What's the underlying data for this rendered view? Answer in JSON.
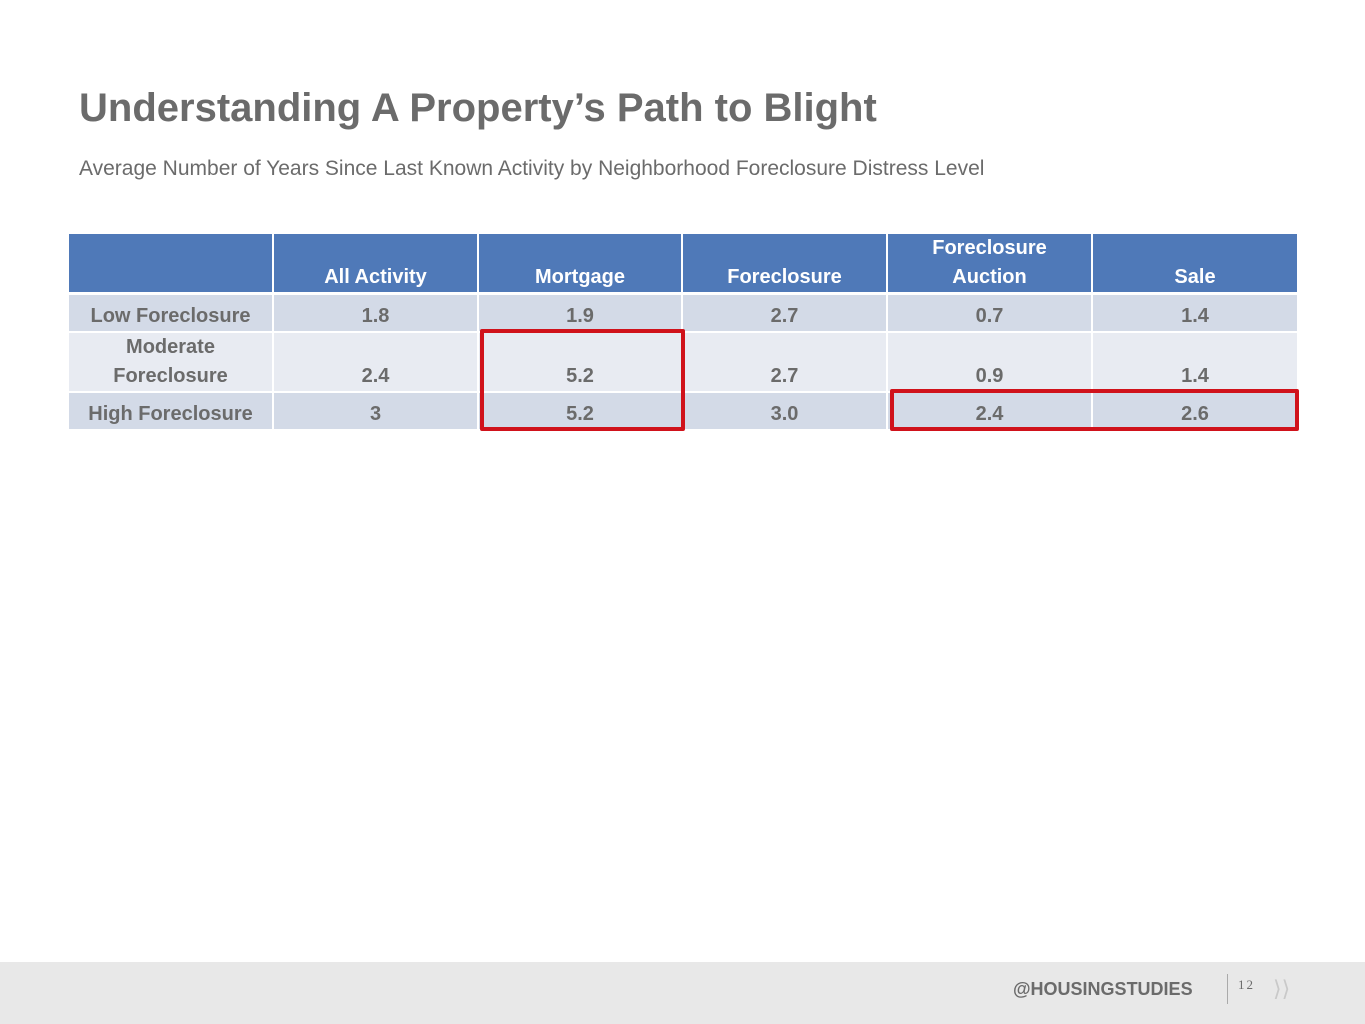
{
  "slide": {
    "title": "Understanding A Property’s Path to Blight",
    "subtitle": "Average Number of Years Since Last Known Activity by Neighborhood Foreclosure Distress Level"
  },
  "table": {
    "headers": [
      "",
      "All Activity",
      "Mortgage",
      "Foreclosure",
      "Foreclosure Auction",
      "Sale"
    ],
    "rows": [
      {
        "label": "Low Foreclosure",
        "values": [
          "1.8",
          "1.9",
          "2.7",
          "0.7",
          "1.4"
        ]
      },
      {
        "label": "Moderate Foreclosure",
        "values": [
          "2.4",
          "5.2",
          "2.7",
          "0.9",
          "1.4"
        ]
      },
      {
        "label": "High Foreclosure",
        "values": [
          "3",
          "5.2",
          "3.0",
          "2.4",
          "2.6"
        ]
      }
    ]
  },
  "highlights": [
    {
      "covers": "Mortgage column, Moderate and High Foreclosure rows",
      "color": "#d0121b"
    },
    {
      "covers": "Foreclosure Auction and Sale columns, High Foreclosure row",
      "color": "#d0121b"
    }
  ],
  "footer": {
    "handle": "@HOUSINGSTUDIES",
    "page_number": "12",
    "next_icon": "double-chevron-right-icon"
  },
  "colors": {
    "header_bg": "#4f79b8",
    "row_dark": "#d3dae7",
    "row_light": "#e8ebf2",
    "text_gray": "#6b6b6b",
    "highlight": "#d0121b",
    "footer_bg": "#e8e8e8"
  }
}
